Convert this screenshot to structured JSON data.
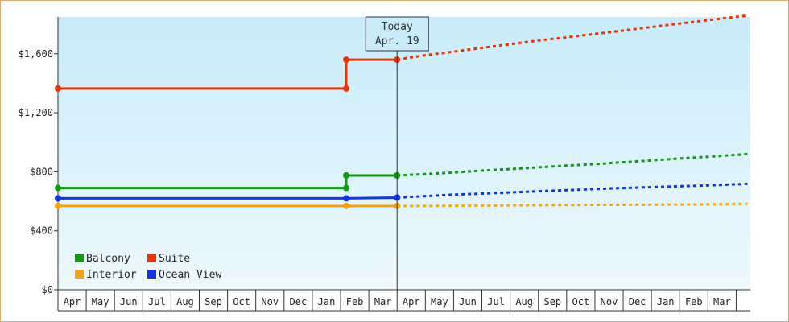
{
  "chart_data": {
    "type": "line",
    "title": "",
    "xlabel": "",
    "ylabel": "",
    "ylim": [
      0,
      1850
    ],
    "y_ticks": [
      {
        "value": 0,
        "label": "$0"
      },
      {
        "value": 400,
        "label": "$400"
      },
      {
        "value": 800,
        "label": "$800"
      },
      {
        "value": 1200,
        "label": "$1,200"
      },
      {
        "value": 1600,
        "label": "$1,600"
      }
    ],
    "x_tick_labels": [
      "Apr",
      "May",
      "Jun",
      "Jul",
      "Aug",
      "Sep",
      "Oct",
      "Nov",
      "Dec",
      "Jan",
      "Feb",
      "Mar",
      "Apr",
      "May",
      "Jun",
      "Jul",
      "Aug",
      "Sep",
      "Oct",
      "Nov",
      "Dec",
      "Jan",
      "Feb",
      "Mar"
    ],
    "x_domain": [
      0,
      24.5
    ],
    "today": {
      "line1": "Today",
      "line2": "Apr. 19",
      "x": 12.0
    },
    "legend": {
      "placement": "bottom-left"
    },
    "background": {
      "top": "#c8ecfa",
      "bottom": "#eef9fd"
    },
    "series": [
      {
        "name": "Balcony",
        "color": "#119911",
        "historical": [
          [
            0,
            690
          ],
          [
            10.2,
            690
          ],
          [
            10.2,
            775
          ],
          [
            12.0,
            775
          ]
        ],
        "markers": [
          [
            0,
            690
          ],
          [
            10.2,
            690
          ],
          [
            10.2,
            775
          ],
          [
            12.0,
            775
          ]
        ],
        "forecast": [
          [
            12.0,
            775
          ],
          [
            13,
            785
          ],
          [
            14,
            795
          ],
          [
            15,
            808
          ],
          [
            16,
            818
          ],
          [
            17,
            830
          ],
          [
            18,
            842
          ],
          [
            19,
            852
          ],
          [
            20,
            865
          ],
          [
            21,
            877
          ],
          [
            22,
            890
          ],
          [
            23,
            902
          ],
          [
            24.4,
            920
          ]
        ]
      },
      {
        "name": "Suite",
        "color": "#ee3300",
        "historical": [
          [
            0,
            1365
          ],
          [
            10.2,
            1365
          ],
          [
            10.2,
            1560
          ],
          [
            12.0,
            1560
          ]
        ],
        "markers": [
          [
            0,
            1365
          ],
          [
            10.2,
            1365
          ],
          [
            10.2,
            1560
          ],
          [
            12.0,
            1560
          ]
        ],
        "forecast": [
          [
            12.0,
            1560
          ],
          [
            13,
            1590
          ],
          [
            14,
            1615
          ],
          [
            15,
            1640
          ],
          [
            16,
            1665
          ],
          [
            17,
            1690
          ],
          [
            18,
            1712
          ],
          [
            19,
            1735
          ],
          [
            20,
            1758
          ],
          [
            21,
            1782
          ],
          [
            22,
            1805
          ],
          [
            23,
            1828
          ],
          [
            24.4,
            1860
          ]
        ]
      },
      {
        "name": "Interior",
        "color": "#f5a310",
        "historical": [
          [
            0,
            568
          ],
          [
            10.2,
            568
          ],
          [
            12.0,
            568
          ]
        ],
        "markers": [
          [
            0,
            568
          ],
          [
            10.2,
            568
          ],
          [
            12.0,
            568
          ]
        ],
        "forecast": [
          [
            12.0,
            568
          ],
          [
            13,
            568
          ],
          [
            14,
            570
          ],
          [
            15,
            571
          ],
          [
            16,
            572
          ],
          [
            17,
            573
          ],
          [
            18,
            574
          ],
          [
            19,
            575
          ],
          [
            20,
            576
          ],
          [
            21,
            577
          ],
          [
            22,
            578
          ],
          [
            23,
            579
          ],
          [
            24.4,
            583
          ]
        ]
      },
      {
        "name": "Ocean View",
        "color": "#1133ee",
        "historical": [
          [
            0,
            620
          ],
          [
            10.2,
            620
          ],
          [
            12.0,
            625
          ]
        ],
        "markers": [
          [
            0,
            620
          ],
          [
            10.2,
            620
          ],
          [
            12.0,
            625
          ]
        ],
        "forecast": [
          [
            12.0,
            625
          ],
          [
            13,
            635
          ],
          [
            14,
            645
          ],
          [
            15,
            652
          ],
          [
            16,
            660
          ],
          [
            17,
            668
          ],
          [
            18,
            675
          ],
          [
            19,
            683
          ],
          [
            20,
            690
          ],
          [
            21,
            696
          ],
          [
            22,
            702
          ],
          [
            23,
            708
          ],
          [
            24.4,
            718
          ]
        ]
      }
    ]
  }
}
